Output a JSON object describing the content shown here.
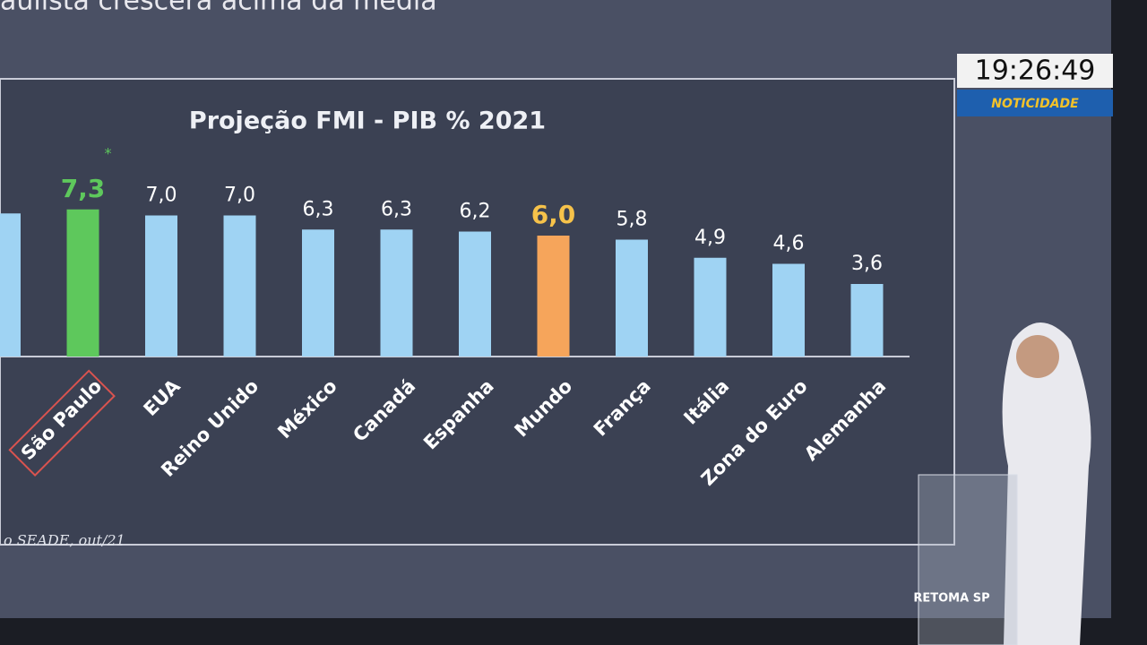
{
  "chart_data": {
    "type": "bar",
    "headline": "aulista crescerá acima da média",
    "title": "Projeção FMI - PIB % 2021",
    "categories": [
      null,
      "São Paulo",
      "EUA",
      "Reino Unido",
      "México",
      "Canadá",
      "Espanha",
      "Mundo",
      "França",
      "Itália",
      "Zona do Euro",
      "Alemanha"
    ],
    "values": [
      7.1,
      7.3,
      7.0,
      7.0,
      6.3,
      6.3,
      6.2,
      6.0,
      5.8,
      4.9,
      4.6,
      3.6
    ],
    "value_labels": [
      null,
      "7,3",
      "7,0",
      "7,0",
      "6,3",
      "6,3",
      "6,2",
      "6,0",
      "5,8",
      "4,9",
      "4,6",
      "3,6"
    ],
    "colors": [
      "#9fd3f3",
      "#5ec85c",
      "#9fd3f3",
      "#9fd3f3",
      "#9fd3f3",
      "#9fd3f3",
      "#9fd3f3",
      "#f6a55b",
      "#9fd3f3",
      "#9fd3f3",
      "#9fd3f3",
      "#9fd3f3"
    ],
    "label_colors": [
      "#ffffff",
      "#5ec85c",
      "#ffffff",
      "#ffffff",
      "#ffffff",
      "#ffffff",
      "#ffffff",
      "#f6c24a",
      "#ffffff",
      "#ffffff",
      "#ffffff",
      "#ffffff"
    ],
    "highlight_marker": "*",
    "source": "o SEADE, out/21"
  },
  "overlay": {
    "clock": "19:26:49",
    "channel": "NOTICIDADE",
    "podium": "RETOMA SP"
  }
}
